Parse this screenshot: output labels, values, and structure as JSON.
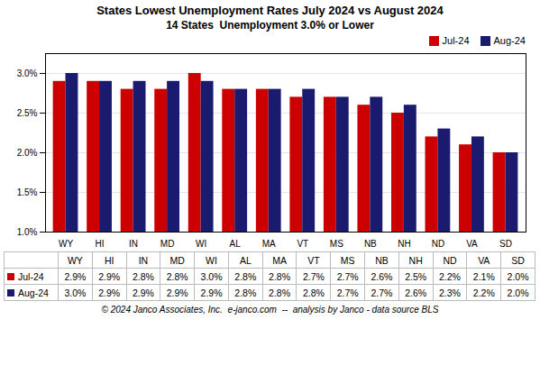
{
  "chart_data": {
    "type": "bar",
    "title": "States Lowest Unemployment Rates July 2024 vs August 2024",
    "subtitle": "14 States  Unemployment 3.0% or Lower",
    "caption": "© 2024 Janco Associates, Inc.  e-janco.com  --  analysis by Janco - data source BLS",
    "categories": [
      "WY",
      "HI",
      "IN",
      "MD",
      "WI",
      "AL",
      "MA",
      "VT",
      "MS",
      "NB",
      "NH",
      "ND",
      "VA",
      "SD"
    ],
    "series": [
      {
        "name": "Jul-24",
        "color": "#cc0000",
        "values": [
          2.9,
          2.9,
          2.8,
          2.8,
          3.0,
          2.8,
          2.8,
          2.7,
          2.7,
          2.6,
          2.5,
          2.2,
          2.1,
          2.0
        ],
        "value_labels": [
          "2.9%",
          "2.9%",
          "2.8%",
          "2.8%",
          "3.0%",
          "2.8%",
          "2.8%",
          "2.7%",
          "2.7%",
          "2.6%",
          "2.5%",
          "2.2%",
          "2.1%",
          "2.0%"
        ]
      },
      {
        "name": "Aug-24",
        "color": "#1a1a6e",
        "values": [
          3.0,
          2.9,
          2.9,
          2.9,
          2.9,
          2.8,
          2.8,
          2.8,
          2.7,
          2.7,
          2.6,
          2.3,
          2.2,
          2.0
        ],
        "value_labels": [
          "3.0%",
          "2.9%",
          "2.9%",
          "2.9%",
          "2.9%",
          "2.8%",
          "2.8%",
          "2.8%",
          "2.7%",
          "2.7%",
          "2.6%",
          "2.3%",
          "2.2%",
          "2.0%"
        ]
      }
    ],
    "ylim": [
      1.0,
      3.25
    ],
    "yticks": [
      {
        "value": 1.0,
        "label": "1.0%"
      },
      {
        "value": 1.5,
        "label": "1.5%"
      },
      {
        "value": 2.0,
        "label": "2.0%"
      },
      {
        "value": 2.5,
        "label": "2.5%"
      },
      {
        "value": 3.0,
        "label": "3.0%"
      }
    ],
    "grid": true,
    "legend": "upper right"
  }
}
